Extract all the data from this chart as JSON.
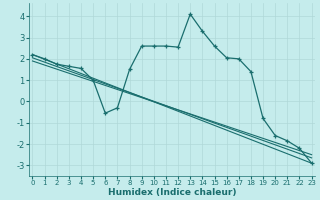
{
  "title": "",
  "xlabel": "Humidex (Indice chaleur)",
  "ylabel": "",
  "bg_color": "#c5ecec",
  "line_color": "#1a6e6e",
  "grid_color": "#b0d8d8",
  "xlim": [
    -0.3,
    23.3
  ],
  "ylim": [
    -3.5,
    4.6
  ],
  "xticks": [
    0,
    1,
    2,
    3,
    4,
    5,
    6,
    7,
    8,
    9,
    10,
    11,
    12,
    13,
    14,
    15,
    16,
    17,
    18,
    19,
    20,
    21,
    22,
    23
  ],
  "yticks": [
    -3,
    -2,
    -1,
    0,
    1,
    2,
    3,
    4
  ],
  "main_line": {
    "x": [
      0,
      1,
      2,
      3,
      4,
      5,
      6,
      7,
      8,
      9,
      10,
      11,
      12,
      13,
      14,
      15,
      16,
      17,
      18,
      19,
      20,
      21,
      22,
      23
    ],
    "y": [
      2.2,
      2.0,
      1.75,
      1.65,
      1.55,
      1.0,
      -0.55,
      -0.3,
      1.5,
      2.6,
      2.6,
      2.6,
      2.55,
      4.1,
      3.3,
      2.6,
      2.05,
      2.0,
      1.4,
      -0.8,
      -1.6,
      -1.85,
      -2.2,
      -2.9
    ]
  },
  "line1": {
    "x": [
      0,
      23
    ],
    "y": [
      2.2,
      -2.9
    ]
  },
  "line2": {
    "x": [
      0,
      23
    ],
    "y": [
      2.05,
      -2.65
    ]
  },
  "line3": {
    "x": [
      0,
      23
    ],
    "y": [
      1.9,
      -2.5
    ]
  }
}
